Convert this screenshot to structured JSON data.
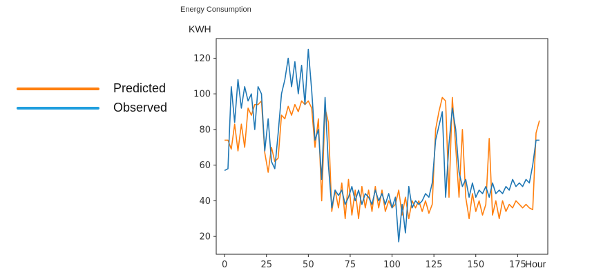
{
  "chart_data": {
    "type": "line",
    "title": "Energy Consumption",
    "ylabel": "KWH",
    "xlabel": "Hour",
    "xlim": [
      -5,
      193
    ],
    "ylim": [
      10,
      131
    ],
    "xticks": [
      0,
      25,
      50,
      75,
      100,
      125,
      150,
      175
    ],
    "yticks": [
      20,
      40,
      60,
      80,
      100,
      120
    ],
    "legend_position": "left",
    "series": [
      {
        "name": "Predicted",
        "color": "#ff7f0e",
        "points": [
          [
            0,
            74
          ],
          [
            2,
            74
          ],
          [
            4,
            69
          ],
          [
            6,
            83
          ],
          [
            8,
            68
          ],
          [
            10,
            83
          ],
          [
            12,
            70
          ],
          [
            14,
            92
          ],
          [
            16,
            88
          ],
          [
            18,
            94
          ],
          [
            20,
            94
          ],
          [
            22,
            96
          ],
          [
            24,
            67
          ],
          [
            26,
            56
          ],
          [
            28,
            70
          ],
          [
            30,
            62
          ],
          [
            32,
            64
          ],
          [
            34,
            88
          ],
          [
            36,
            86
          ],
          [
            38,
            93
          ],
          [
            40,
            88
          ],
          [
            42,
            94
          ],
          [
            44,
            90
          ],
          [
            46,
            96
          ],
          [
            48,
            94
          ],
          [
            50,
            96
          ],
          [
            52,
            92
          ],
          [
            54,
            70
          ],
          [
            56,
            86
          ],
          [
            58,
            40
          ],
          [
            60,
            92
          ],
          [
            62,
            84
          ],
          [
            64,
            34
          ],
          [
            66,
            46
          ],
          [
            68,
            36
          ],
          [
            70,
            50
          ],
          [
            72,
            30
          ],
          [
            74,
            52
          ],
          [
            76,
            32
          ],
          [
            78,
            46
          ],
          [
            80,
            30
          ],
          [
            82,
            48
          ],
          [
            84,
            36
          ],
          [
            86,
            46
          ],
          [
            88,
            34
          ],
          [
            90,
            48
          ],
          [
            92,
            36
          ],
          [
            94,
            46
          ],
          [
            96,
            34
          ],
          [
            98,
            40
          ],
          [
            100,
            36
          ],
          [
            102,
            38
          ],
          [
            104,
            46
          ],
          [
            106,
            32
          ],
          [
            108,
            42
          ],
          [
            110,
            30
          ],
          [
            112,
            40
          ],
          [
            114,
            36
          ],
          [
            116,
            40
          ],
          [
            118,
            34
          ],
          [
            120,
            40
          ],
          [
            122,
            33
          ],
          [
            124,
            38
          ],
          [
            126,
            80
          ],
          [
            128,
            90
          ],
          [
            130,
            98
          ],
          [
            132,
            96
          ],
          [
            134,
            42
          ],
          [
            136,
            98
          ],
          [
            138,
            70
          ],
          [
            140,
            42
          ],
          [
            142,
            80
          ],
          [
            144,
            42
          ],
          [
            146,
            30
          ],
          [
            148,
            44
          ],
          [
            150,
            34
          ],
          [
            152,
            40
          ],
          [
            154,
            32
          ],
          [
            156,
            38
          ],
          [
            158,
            75
          ],
          [
            160,
            32
          ],
          [
            162,
            40
          ],
          [
            164,
            30
          ],
          [
            166,
            40
          ],
          [
            168,
            34
          ],
          [
            170,
            38
          ],
          [
            172,
            36
          ],
          [
            174,
            40
          ],
          [
            176,
            38
          ],
          [
            178,
            36
          ],
          [
            180,
            38
          ],
          [
            182,
            36
          ],
          [
            184,
            35
          ],
          [
            186,
            78
          ],
          [
            188,
            85
          ]
        ]
      },
      {
        "name": "Observed",
        "color": "#1f77b4",
        "points": [
          [
            0,
            57
          ],
          [
            2,
            58
          ],
          [
            4,
            104
          ],
          [
            6,
            84
          ],
          [
            8,
            108
          ],
          [
            10,
            92
          ],
          [
            12,
            104
          ],
          [
            14,
            96
          ],
          [
            16,
            100
          ],
          [
            18,
            80
          ],
          [
            20,
            104
          ],
          [
            22,
            100
          ],
          [
            24,
            68
          ],
          [
            26,
            86
          ],
          [
            28,
            62
          ],
          [
            30,
            58
          ],
          [
            32,
            78
          ],
          [
            34,
            100
          ],
          [
            36,
            108
          ],
          [
            38,
            120
          ],
          [
            40,
            104
          ],
          [
            42,
            118
          ],
          [
            44,
            100
          ],
          [
            46,
            116
          ],
          [
            48,
            94
          ],
          [
            50,
            125
          ],
          [
            52,
            102
          ],
          [
            54,
            74
          ],
          [
            56,
            80
          ],
          [
            58,
            52
          ],
          [
            60,
            98
          ],
          [
            62,
            60
          ],
          [
            64,
            36
          ],
          [
            66,
            46
          ],
          [
            68,
            43
          ],
          [
            70,
            46
          ],
          [
            72,
            38
          ],
          [
            74,
            42
          ],
          [
            76,
            48
          ],
          [
            78,
            40
          ],
          [
            80,
            46
          ],
          [
            82,
            38
          ],
          [
            84,
            44
          ],
          [
            86,
            42
          ],
          [
            88,
            38
          ],
          [
            90,
            46
          ],
          [
            92,
            40
          ],
          [
            94,
            44
          ],
          [
            96,
            38
          ],
          [
            98,
            44
          ],
          [
            100,
            36
          ],
          [
            102,
            42
          ],
          [
            104,
            17
          ],
          [
            106,
            38
          ],
          [
            108,
            22
          ],
          [
            110,
            48
          ],
          [
            112,
            36
          ],
          [
            114,
            40
          ],
          [
            116,
            38
          ],
          [
            118,
            40
          ],
          [
            120,
            44
          ],
          [
            122,
            42
          ],
          [
            124,
            50
          ],
          [
            126,
            74
          ],
          [
            128,
            82
          ],
          [
            130,
            90
          ],
          [
            132,
            42
          ],
          [
            134,
            72
          ],
          [
            136,
            92
          ],
          [
            138,
            80
          ],
          [
            140,
            56
          ],
          [
            142,
            48
          ],
          [
            144,
            52
          ],
          [
            146,
            42
          ],
          [
            148,
            50
          ],
          [
            150,
            42
          ],
          [
            152,
            46
          ],
          [
            154,
            44
          ],
          [
            156,
            48
          ],
          [
            158,
            42
          ],
          [
            160,
            50
          ],
          [
            162,
            44
          ],
          [
            164,
            46
          ],
          [
            166,
            44
          ],
          [
            168,
            48
          ],
          [
            170,
            46
          ],
          [
            172,
            52
          ],
          [
            174,
            48
          ],
          [
            176,
            50
          ],
          [
            178,
            48
          ],
          [
            180,
            52
          ],
          [
            182,
            50
          ],
          [
            184,
            60
          ],
          [
            186,
            74
          ],
          [
            188,
            74
          ]
        ]
      }
    ]
  }
}
